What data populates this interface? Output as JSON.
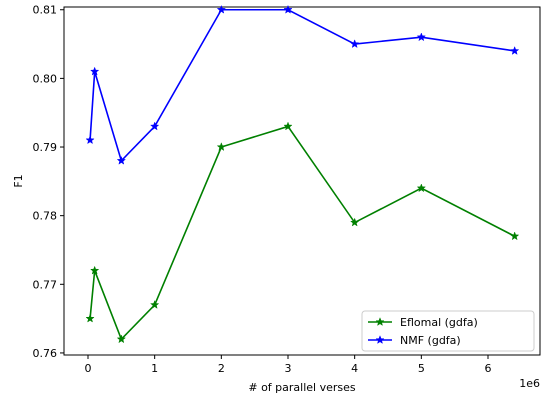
{
  "chart_data": {
    "type": "line",
    "title": "",
    "xlabel": "# of parallel verses",
    "ylabel": "F1",
    "x_offset_label": "1e6",
    "xlim": [
      -0.36,
      6.78
    ],
    "ylim": [
      0.7597,
      0.8104
    ],
    "xticks": [
      0,
      1,
      2,
      3,
      4,
      5,
      6
    ],
    "xtick_labels": [
      "0",
      "1",
      "2",
      "3",
      "4",
      "5",
      "6"
    ],
    "yticks": [
      0.76,
      0.77,
      0.78,
      0.79,
      0.8,
      0.81
    ],
    "ytick_labels": [
      "0.76",
      "0.77",
      "0.78",
      "0.79",
      "0.80",
      "0.81"
    ],
    "grid": false,
    "legend_position": "lower-right",
    "series": [
      {
        "name": "Eflomal (gdfa)",
        "color": "#008000",
        "marker": "star",
        "x": [
          0.031,
          0.1,
          0.5,
          1.0,
          2.0,
          3.0,
          4.0,
          5.0,
          6.4
        ],
        "y": [
          0.765,
          0.772,
          0.762,
          0.767,
          0.79,
          0.793,
          0.779,
          0.784,
          0.777
        ]
      },
      {
        "name": "NMF (gdfa)",
        "color": "#0000ff",
        "marker": "star",
        "x": [
          0.031,
          0.1,
          0.5,
          1.0,
          2.0,
          3.0,
          4.0,
          5.0,
          6.4
        ],
        "y": [
          0.791,
          0.801,
          0.788,
          0.793,
          0.81,
          0.81,
          0.805,
          0.806,
          0.804
        ]
      }
    ]
  }
}
